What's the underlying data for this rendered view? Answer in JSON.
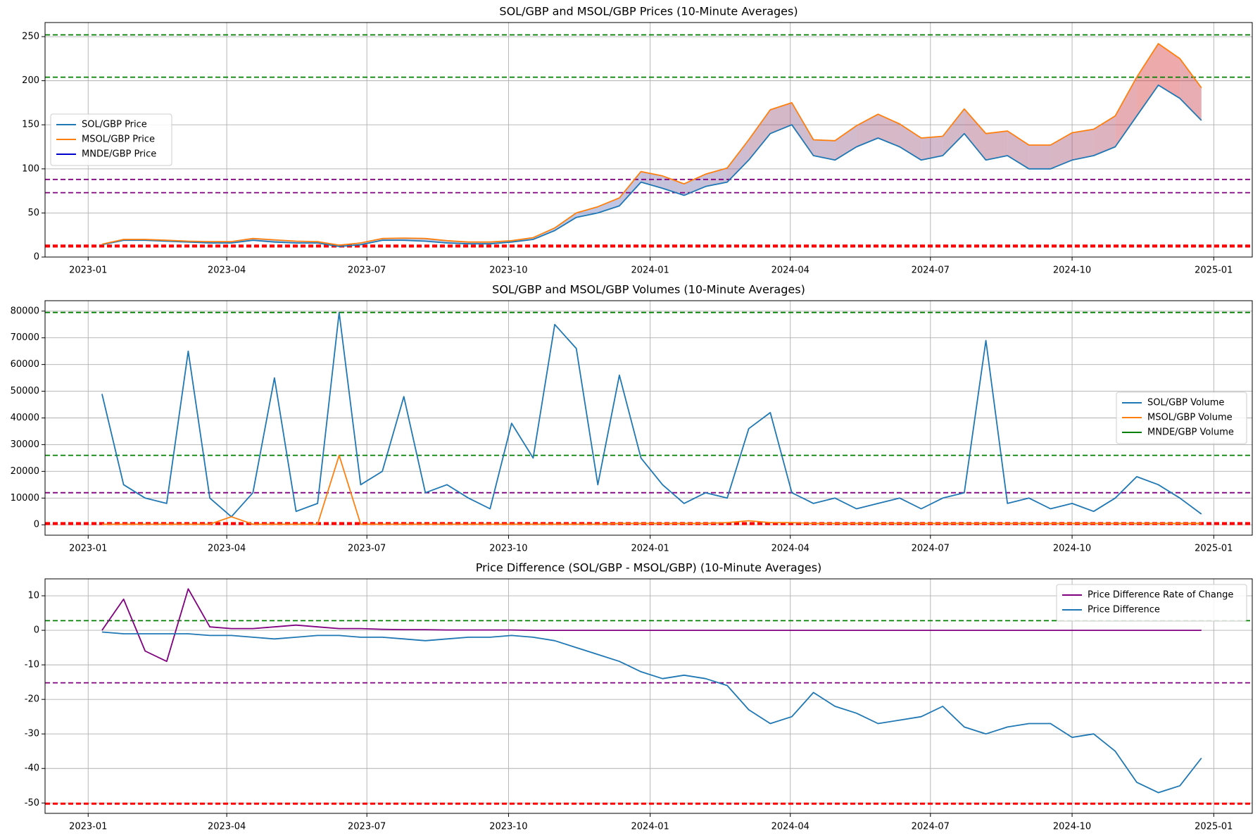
{
  "chart_data": [
    {
      "type": "line",
      "title": "SOL/GBP and MSOL/GBP Prices (10-Minute Averages)",
      "x": [
        "2023-01-10",
        "2023-01-24",
        "2023-02-07",
        "2023-02-21",
        "2023-03-07",
        "2023-03-21",
        "2023-04-04",
        "2023-04-18",
        "2023-05-02",
        "2023-05-16",
        "2023-05-30",
        "2023-06-13",
        "2023-06-27",
        "2023-07-11",
        "2023-07-25",
        "2023-08-08",
        "2023-08-22",
        "2023-09-05",
        "2023-09-19",
        "2023-10-03",
        "2023-10-17",
        "2023-10-31",
        "2023-11-14",
        "2023-11-28",
        "2023-12-12",
        "2023-12-26",
        "2024-01-09",
        "2024-01-23",
        "2024-02-06",
        "2024-02-20",
        "2024-03-05",
        "2024-03-19",
        "2024-04-02",
        "2024-04-16",
        "2024-04-30",
        "2024-05-14",
        "2024-05-28",
        "2024-06-11",
        "2024-06-25",
        "2024-07-09",
        "2024-07-23",
        "2024-08-06",
        "2024-08-20",
        "2024-09-03",
        "2024-09-17",
        "2024-10-01",
        "2024-10-15",
        "2024-10-29",
        "2024-11-12",
        "2024-11-26",
        "2024-12-10",
        "2024-12-24"
      ],
      "series": [
        {
          "name": "SOL/GBP Price",
          "color": "#1f77b4",
          "values": [
            14,
            19,
            19,
            18,
            17,
            16,
            16,
            19,
            17,
            16,
            16,
            12,
            14,
            19,
            19,
            18,
            16,
            15,
            15,
            17,
            20,
            30,
            45,
            50,
            58,
            85,
            78,
            70,
            80,
            85,
            110,
            140,
            150,
            115,
            110,
            125,
            135,
            125,
            110,
            115,
            140,
            110,
            115,
            100,
            100,
            110,
            115,
            125,
            160,
            195,
            180,
            155
          ]
        },
        {
          "name": "MSOL/GBP Price",
          "color": "#ff7f0e",
          "values": [
            14.5,
            20,
            20,
            19,
            18,
            17.5,
            17.5,
            21,
            19.5,
            18,
            17.5,
            13.5,
            16,
            21,
            21.5,
            21,
            18.5,
            17,
            17,
            18.5,
            22,
            33,
            50,
            57,
            67,
            97,
            92,
            83,
            94,
            101,
            133,
            167,
            175,
            133,
            132,
            149,
            162,
            151,
            135,
            137,
            168,
            140,
            143,
            127,
            127,
            141,
            145,
            160,
            204,
            242,
            225,
            192
          ]
        },
        {
          "name": "MNDE/GBP Price",
          "color": "#0000cd",
          "values": [
            null,
            null,
            null,
            null,
            null,
            null,
            null,
            null,
            null,
            null,
            null,
            null,
            null,
            null,
            null,
            null,
            null,
            null,
            null,
            null,
            null,
            null,
            null,
            null,
            null,
            null,
            null,
            null,
            null,
            null,
            null,
            null,
            null,
            null,
            null,
            null,
            null,
            null,
            null,
            null,
            null,
            null,
            null,
            null,
            null,
            null,
            null,
            null,
            null,
            null,
            null,
            null
          ]
        }
      ],
      "fill_between": [
        0,
        1
      ],
      "fill_colors": [
        "#4a7fd6",
        "#d62728"
      ],
      "hlines": [
        {
          "value": 252,
          "color": "green"
        },
        {
          "value": 204,
          "color": "green"
        },
        {
          "value": 88,
          "color": "purple"
        },
        {
          "value": 73,
          "color": "purple"
        },
        {
          "value": 13,
          "color": "red"
        },
        {
          "value": 12,
          "color": "red"
        }
      ],
      "xlim": [
        "2022-12-04",
        "2025-01-26"
      ],
      "xticks": [
        "2023-01",
        "2023-04",
        "2023-07",
        "2023-10",
        "2024-01",
        "2024-04",
        "2024-07",
        "2024-10",
        "2025-01"
      ],
      "ylim": [
        0,
        266
      ],
      "yticks": [
        0,
        50,
        100,
        150,
        200,
        250
      ],
      "grid": true,
      "legend": "center left"
    },
    {
      "type": "line",
      "title": "SOL/GBP and MSOL/GBP Volumes (10-Minute Averages)",
      "x": [
        "2023-01-10",
        "2023-01-24",
        "2023-02-07",
        "2023-02-21",
        "2023-03-07",
        "2023-03-21",
        "2023-04-04",
        "2023-04-18",
        "2023-05-02",
        "2023-05-16",
        "2023-05-30",
        "2023-06-13",
        "2023-06-27",
        "2023-07-11",
        "2023-07-25",
        "2023-08-08",
        "2023-08-22",
        "2023-09-05",
        "2023-09-19",
        "2023-10-03",
        "2023-10-17",
        "2023-10-31",
        "2023-11-14",
        "2023-11-28",
        "2023-12-12",
        "2023-12-26",
        "2024-01-09",
        "2024-01-23",
        "2024-02-06",
        "2024-02-20",
        "2024-03-05",
        "2024-03-19",
        "2024-04-02",
        "2024-04-16",
        "2024-04-30",
        "2024-05-14",
        "2024-05-28",
        "2024-06-11",
        "2024-06-25",
        "2024-07-09",
        "2024-07-23",
        "2024-08-06",
        "2024-08-20",
        "2024-09-03",
        "2024-09-17",
        "2024-10-01",
        "2024-10-15",
        "2024-10-29",
        "2024-11-12",
        "2024-11-26",
        "2024-12-10",
        "2024-12-24"
      ],
      "series": [
        {
          "name": "SOL/GBP Volume",
          "color": "#1f77b4",
          "values": [
            49000,
            15000,
            10000,
            8000,
            65000,
            10000,
            3000,
            12000,
            55000,
            5000,
            8000,
            79500,
            15000,
            20000,
            48000,
            12000,
            15000,
            10000,
            6000,
            38000,
            25000,
            75000,
            66000,
            15000,
            56000,
            25000,
            15000,
            8000,
            12000,
            10000,
            36000,
            42000,
            12000,
            8000,
            10000,
            6000,
            8000,
            10000,
            6000,
            10000,
            12000,
            69000,
            8000,
            10000,
            6000,
            8000,
            5000,
            10000,
            18000,
            15000,
            10000,
            4000
          ]
        },
        {
          "name": "MSOL/GBP Volume",
          "color": "#ff7f0e",
          "values": [
            200,
            200,
            200,
            200,
            200,
            200,
            3000,
            200,
            200,
            200,
            200,
            26000,
            200,
            200,
            200,
            200,
            200,
            200,
            200,
            200,
            200,
            200,
            200,
            200,
            500,
            500,
            500,
            500,
            500,
            800,
            1500,
            800,
            800,
            500,
            500,
            500,
            500,
            500,
            500,
            500,
            500,
            500,
            500,
            500,
            500,
            500,
            500,
            500,
            500,
            500,
            500,
            500
          ]
        },
        {
          "name": "MNDE/GBP Volume",
          "color": "#008000",
          "values": [
            null,
            null,
            null,
            null,
            null,
            null,
            null,
            null,
            null,
            null,
            null,
            null,
            null,
            null,
            null,
            null,
            null,
            null,
            null,
            null,
            null,
            null,
            null,
            null,
            null,
            null,
            null,
            null,
            null,
            null,
            null,
            null,
            null,
            null,
            null,
            null,
            null,
            null,
            null,
            null,
            null,
            null,
            null,
            null,
            null,
            null,
            null,
            null,
            null,
            null,
            null,
            null
          ]
        }
      ],
      "hlines": [
        {
          "value": 79500,
          "color": "green"
        },
        {
          "value": 26000,
          "color": "green"
        },
        {
          "value": 12000,
          "color": "purple"
        },
        {
          "value": 600,
          "color": "red"
        },
        {
          "value": 300,
          "color": "red"
        }
      ],
      "xlim": [
        "2022-12-04",
        "2025-01-26"
      ],
      "xticks": [
        "2023-01",
        "2023-04",
        "2023-07",
        "2023-10",
        "2024-01",
        "2024-04",
        "2024-07",
        "2024-10",
        "2025-01"
      ],
      "ylim": [
        -3900,
        83900
      ],
      "yticks": [
        0,
        10000,
        20000,
        30000,
        40000,
        50000,
        60000,
        70000,
        80000
      ],
      "grid": true,
      "legend": "center right"
    },
    {
      "type": "line",
      "title": "Price Difference (SOL/GBP - MSOL/GBP) (10-Minute Averages)",
      "x": [
        "2023-01-10",
        "2023-01-24",
        "2023-02-07",
        "2023-02-21",
        "2023-03-07",
        "2023-03-21",
        "2023-04-04",
        "2023-04-18",
        "2023-05-02",
        "2023-05-16",
        "2023-05-30",
        "2023-06-13",
        "2023-06-27",
        "2023-07-11",
        "2023-07-25",
        "2023-08-08",
        "2023-08-22",
        "2023-09-05",
        "2023-09-19",
        "2023-10-03",
        "2023-10-17",
        "2023-10-31",
        "2023-11-14",
        "2023-11-28",
        "2023-12-12",
        "2023-12-26",
        "2024-01-09",
        "2024-01-23",
        "2024-02-06",
        "2024-02-20",
        "2024-03-05",
        "2024-03-19",
        "2024-04-02",
        "2024-04-16",
        "2024-04-30",
        "2024-05-14",
        "2024-05-28",
        "2024-06-11",
        "2024-06-25",
        "2024-07-09",
        "2024-07-23",
        "2024-08-06",
        "2024-08-20",
        "2024-09-03",
        "2024-09-17",
        "2024-10-01",
        "2024-10-15",
        "2024-10-29",
        "2024-11-12",
        "2024-11-26",
        "2024-12-10",
        "2024-12-24"
      ],
      "series": [
        {
          "name": "Price Difference Rate of Change",
          "color": "#800080",
          "values": [
            0,
            9,
            -6,
            -9,
            12,
            1,
            0.5,
            0.5,
            1,
            1.5,
            1,
            0.5,
            0.5,
            0.3,
            0.2,
            0.2,
            0.1,
            0.1,
            0.1,
            0.1,
            0,
            0,
            0,
            0,
            0,
            0,
            0,
            0,
            0,
            0,
            0,
            0,
            0,
            0,
            0,
            0,
            0,
            0,
            0,
            0,
            0,
            0,
            0,
            0,
            0,
            0,
            0,
            0,
            0,
            0,
            0,
            0
          ]
        },
        {
          "name": "Price Difference",
          "color": "#1f77b4",
          "values": [
            -0.5,
            -1,
            -1,
            -1,
            -1,
            -1.5,
            -1.5,
            -2,
            -2.5,
            -2,
            -1.5,
            -1.5,
            -2,
            -2,
            -2.5,
            -3,
            -2.5,
            -2,
            -2,
            -1.5,
            -2,
            -3,
            -5,
            -7,
            -9,
            -12,
            -14,
            -13,
            -14,
            -16,
            -23,
            -27,
            -25,
            -18,
            -22,
            -24,
            -27,
            -26,
            -25,
            -22,
            -28,
            -30,
            -28,
            -27,
            -27,
            -31,
            -30,
            -35,
            -44,
            -47,
            -45,
            -37
          ]
        }
      ],
      "hlines": [
        {
          "value": 2.8,
          "color": "green"
        },
        {
          "value": -15.2,
          "color": "purple"
        },
        {
          "value": -50.2,
          "color": "red"
        }
      ],
      "xlim": [
        "2022-12-04",
        "2025-01-26"
      ],
      "xticks": [
        "2023-01",
        "2023-04",
        "2023-07",
        "2023-10",
        "2024-01",
        "2024-04",
        "2024-07",
        "2024-10",
        "2025-01"
      ],
      "ylim": [
        -53,
        14.9
      ],
      "yticks": [
        -50,
        -40,
        -30,
        -20,
        -10,
        0,
        10
      ],
      "grid": true,
      "legend": "upper right"
    }
  ]
}
